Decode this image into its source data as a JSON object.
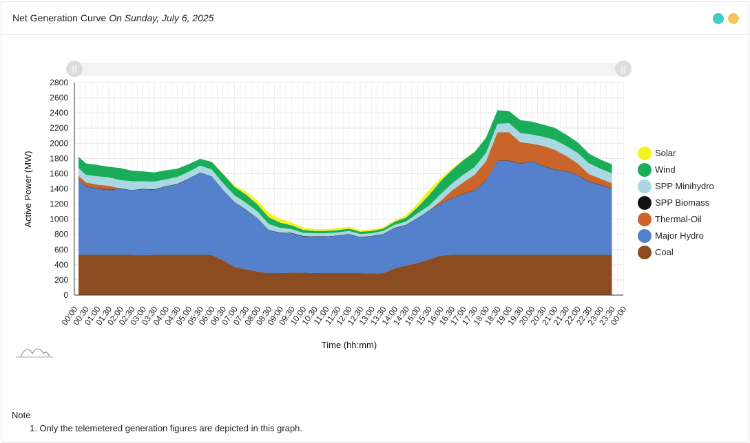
{
  "header": {
    "title": "Net Generation Curve",
    "date": "On Sunday, July 6, 2025",
    "dots": [
      "#3ecfc4",
      "#f5c45e"
    ]
  },
  "chart_data": {
    "type": "area",
    "stacked": true,
    "xlabel": "Time (hh:mm)",
    "ylabel": "Active Power (MW)",
    "ylim": [
      0,
      2800
    ],
    "yticks": [
      0,
      200,
      400,
      600,
      800,
      1000,
      1200,
      1400,
      1600,
      1800,
      2000,
      2200,
      2400,
      2600,
      2800
    ],
    "grid": true,
    "legend_position": "right",
    "x": [
      "00:00",
      "00:30",
      "01:00",
      "01:30",
      "02:00",
      "02:30",
      "03:00",
      "03:30",
      "04:00",
      "04:30",
      "05:00",
      "05:30",
      "06:00",
      "06:30",
      "07:00",
      "07:30",
      "08:00",
      "08:30",
      "09:00",
      "09:30",
      "10:00",
      "10:30",
      "11:00",
      "11:30",
      "12:00",
      "12:30",
      "13:00",
      "13:30",
      "14:00",
      "14:30",
      "15:00",
      "15:30",
      "16:00",
      "16:30",
      "17:00",
      "17:30",
      "18:00",
      "18:30",
      "19:00",
      "19:30",
      "20:00",
      "20:30",
      "21:00",
      "21:30",
      "22:00",
      "22:30",
      "23:00",
      "23:30"
    ],
    "xticks": [
      "00:00",
      "00:30",
      "01:00",
      "01:30",
      "02:00",
      "02:30",
      "03:00",
      "03:30",
      "04:00",
      "04:30",
      "05:00",
      "05:30",
      "06:00",
      "06:30",
      "07:00",
      "07:30",
      "08:00",
      "08:30",
      "09:00",
      "09:30",
      "10:00",
      "10:30",
      "11:00",
      "11:30",
      "12:00",
      "12:30",
      "13:00",
      "13:30",
      "14:00",
      "14:30",
      "15:00",
      "15:30",
      "16:00",
      "16:30",
      "17:00",
      "17:30",
      "18:00",
      "18:30",
      "19:00",
      "19:30",
      "20:00",
      "20:30",
      "21:00",
      "21:30",
      "22:00",
      "22:30",
      "23:00",
      "23:30",
      "00:00"
    ],
    "series": [
      {
        "name": "Coal",
        "color": "#8b4c22",
        "values": [
          530,
          530,
          530,
          530,
          530,
          530,
          525,
          530,
          530,
          530,
          530,
          530,
          530,
          460,
          370,
          340,
          310,
          290,
          290,
          295,
          295,
          290,
          290,
          290,
          290,
          290,
          285,
          290,
          350,
          390,
          420,
          470,
          520,
          530,
          530,
          530,
          530,
          530,
          530,
          530,
          530,
          530,
          530,
          530,
          530,
          530,
          530,
          530
        ]
      },
      {
        "name": "Major Hydro",
        "color": "#5580cc",
        "values": [
          990,
          900,
          870,
          855,
          870,
          850,
          870,
          860,
          900,
          930,
          1000,
          1080,
          1030,
          920,
          850,
          780,
          700,
          560,
          530,
          520,
          480,
          480,
          480,
          490,
          510,
          470,
          490,
          510,
          530,
          530,
          590,
          640,
          680,
          740,
          800,
          850,
          980,
          1240,
          1240,
          1200,
          1230,
          1170,
          1120,
          1100,
          1050,
          960,
          920,
          870
        ]
      },
      {
        "name": "SPP Biomass",
        "color": "#111111",
        "values": [
          5,
          5,
          5,
          5,
          5,
          5,
          5,
          5,
          5,
          5,
          5,
          5,
          5,
          5,
          5,
          5,
          5,
          5,
          5,
          5,
          5,
          5,
          5,
          5,
          5,
          5,
          5,
          5,
          5,
          5,
          5,
          5,
          5,
          5,
          5,
          5,
          5,
          5,
          5,
          5,
          5,
          5,
          5,
          5,
          5,
          5,
          5,
          5
        ]
      },
      {
        "name": "Thermal-Oil",
        "color": "#c9652a",
        "values": [
          50,
          50,
          50,
          50,
          0,
          0,
          0,
          0,
          0,
          0,
          0,
          0,
          0,
          0,
          0,
          0,
          0,
          0,
          0,
          0,
          0,
          0,
          0,
          0,
          0,
          0,
          0,
          0,
          0,
          0,
          0,
          0,
          30,
          100,
          150,
          200,
          250,
          370,
          370,
          280,
          230,
          260,
          260,
          200,
          150,
          100,
          80,
          70
        ]
      },
      {
        "name": "SPP Minihydro",
        "color": "#a9d8e3",
        "values": [
          100,
          100,
          110,
          110,
          110,
          115,
          100,
          100,
          90,
          90,
          90,
          90,
          90,
          90,
          90,
          90,
          90,
          80,
          60,
          50,
          40,
          40,
          40,
          40,
          40,
          40,
          35,
          40,
          40,
          45,
          60,
          60,
          90,
          90,
          100,
          100,
          110,
          110,
          120,
          120,
          120,
          120,
          130,
          130,
          140,
          140,
          130,
          130
        ]
      },
      {
        "name": "Wind",
        "color": "#19ad5a",
        "values": [
          150,
          150,
          150,
          140,
          160,
          140,
          130,
          120,
          120,
          110,
          100,
          90,
          100,
          120,
          110,
          110,
          90,
          90,
          70,
          50,
          40,
          30,
          30,
          30,
          30,
          30,
          30,
          30,
          40,
          50,
          80,
          140,
          170,
          180,
          190,
          200,
          200,
          180,
          160,
          170,
          170,
          160,
          160,
          150,
          140,
          130,
          120,
          120
        ]
      },
      {
        "name": "Solar",
        "color": "#f5f221",
        "values": [
          0,
          0,
          0,
          0,
          0,
          0,
          0,
          0,
          0,
          0,
          0,
          0,
          0,
          10,
          20,
          40,
          50,
          60,
          50,
          40,
          30,
          25,
          25,
          25,
          25,
          20,
          20,
          20,
          20,
          30,
          50,
          70,
          40,
          20,
          10,
          5,
          0,
          0,
          0,
          0,
          0,
          0,
          0,
          0,
          0,
          0,
          0,
          0
        ]
      }
    ],
    "legend_order": [
      "Solar",
      "Wind",
      "SPP Minihydro",
      "SPP Biomass",
      "Thermal-Oil",
      "Major Hydro",
      "Coal"
    ]
  },
  "note": {
    "heading": "Note",
    "items": [
      "1. Only the telemetered generation figures are depicted in this graph."
    ]
  }
}
